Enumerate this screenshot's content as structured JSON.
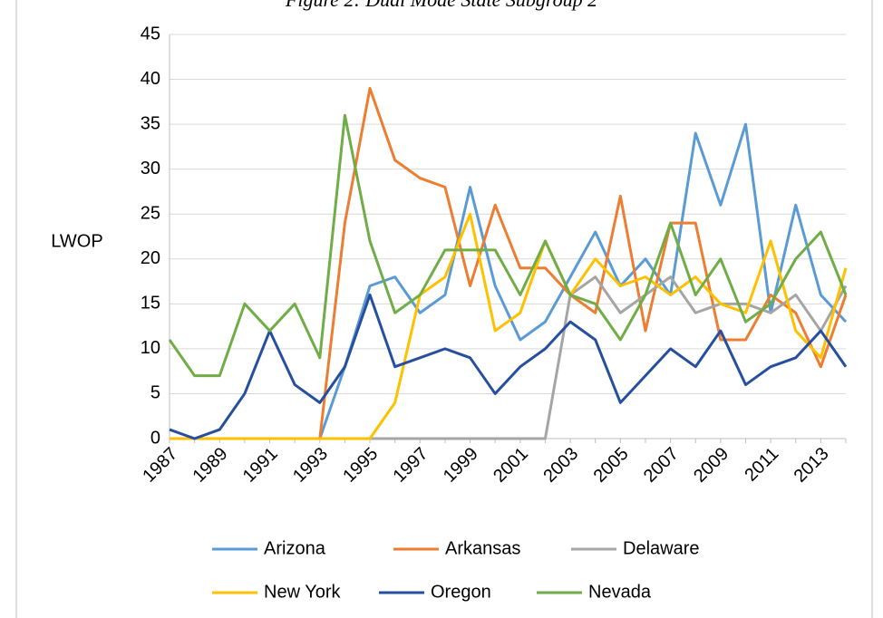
{
  "chart_data": {
    "type": "line",
    "title": "Figure 2: Dual Mode State Subgroup 2",
    "ylabel": "LWOP",
    "categories": [
      "1987",
      null,
      "1989",
      null,
      "1991",
      null,
      "1993",
      null,
      "1995",
      null,
      "1997",
      null,
      "1999",
      null,
      "2001",
      null,
      "2003",
      null,
      "2005",
      null,
      "2007",
      null,
      "2009",
      null,
      "2011",
      null,
      "2013",
      null
    ],
    "series": [
      {
        "name": "Arizona",
        "color": "#5b9bd5",
        "values": [
          0,
          0,
          0,
          0,
          0,
          0,
          0,
          8,
          17,
          18,
          14,
          16,
          28,
          17,
          11,
          13,
          18,
          23,
          17,
          20,
          16,
          34,
          26,
          35,
          14,
          26,
          16,
          13
        ]
      },
      {
        "name": "Arkansas",
        "color": "#ed7d31",
        "values": [
          0,
          0,
          0,
          0,
          0,
          0,
          0,
          24,
          39,
          31,
          29,
          28,
          17,
          26,
          19,
          19,
          16,
          14,
          27,
          12,
          24,
          24,
          11,
          11,
          16,
          14,
          8,
          16
        ]
      },
      {
        "name": "Delaware",
        "color": "#a5a5a5",
        "values": [
          0,
          0,
          0,
          0,
          0,
          0,
          0,
          0,
          0,
          0,
          0,
          0,
          0,
          0,
          0,
          0,
          16,
          18,
          14,
          16,
          18,
          14,
          15,
          15,
          14,
          16,
          12,
          17
        ]
      },
      {
        "name": "New York",
        "color": "#ffc000",
        "values": [
          0,
          0,
          0,
          0,
          0,
          0,
          0,
          0,
          0,
          4,
          16,
          18,
          25,
          12,
          14,
          22,
          16,
          20,
          17,
          18,
          16,
          18,
          15,
          14,
          22,
          12,
          9,
          19
        ]
      },
      {
        "name": "Oregon",
        "color": "#264fa0",
        "values": [
          1,
          0,
          1,
          5,
          12,
          6,
          4,
          8,
          16,
          8,
          9,
          10,
          9,
          5,
          8,
          10,
          13,
          11,
          4,
          7,
          10,
          8,
          12,
          6,
          8,
          9,
          12,
          8
        ]
      },
      {
        "name": "Nevada",
        "color": "#70ad47",
        "values": [
          11,
          7,
          7,
          15,
          12,
          15,
          9,
          36,
          22,
          14,
          16,
          21,
          21,
          21,
          16,
          22,
          16,
          15,
          11,
          16,
          24,
          16,
          20,
          13,
          15,
          20,
          23,
          16
        ]
      }
    ],
    "ylim": [
      0,
      45
    ],
    "yticks": [
      0,
      5,
      10,
      15,
      20,
      25,
      30,
      35,
      40,
      45
    ],
    "grid": true
  }
}
